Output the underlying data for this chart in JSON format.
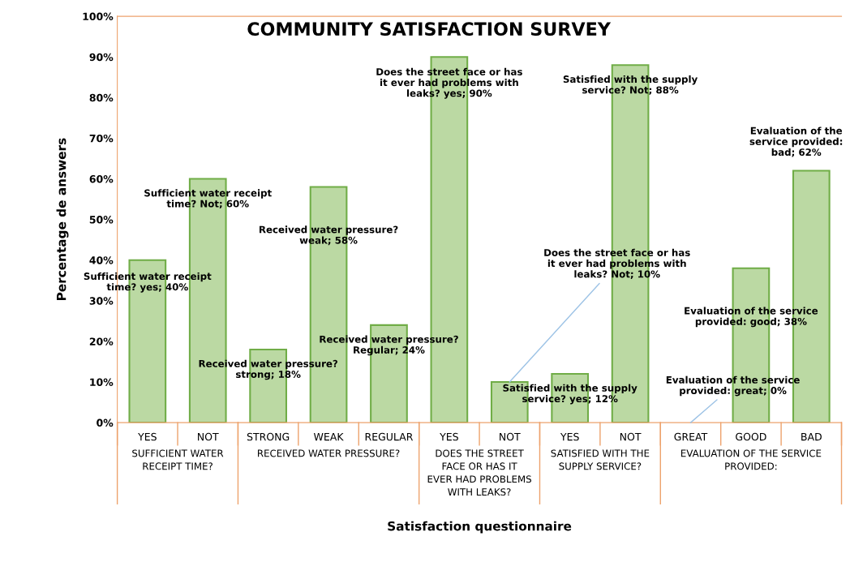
{
  "chart_data": {
    "type": "bar",
    "title": "COMMUNITY SATISFACTION SURVEY",
    "ylabel": "Percentage de answers",
    "categories": [
      "YES",
      "NOT",
      "STRONG",
      "WEAK",
      "REGULAR",
      "YES",
      "NOT",
      "YES",
      "NOT",
      "GREAT",
      "GOOD",
      "BAD"
    ],
    "values": [
      40,
      60,
      18,
      58,
      24,
      90,
      10,
      12,
      88,
      0,
      38,
      62
    ],
    "color": "#bbd9a3",
    "value_labels": [
      "Sufficient water receipt time? yes; 40%",
      "Sufficient water receipt time? Not; 60%",
      "Received water pressure? strong; 18%",
      "Received water pressure? weak; 58%",
      "Received water pressure? Regular; 24%",
      "Does the street face or has it ever had problems with leaks? yes; 90%",
      "Does the street face or has it ever had problems with leaks? Not; 10%",
      "Satisfied with the supply service? yes; 12%",
      "Satisfied with the supply service? Not; 88%",
      "Evaluation of the service provided: great; 0%",
      "Evaluation of the service provided: good; 38%",
      "Evaluation of the service provided: bad; 62%"
    ],
    "annotations": [
      "SUFFICIENT WATER RECEIPT TIME?",
      "RECEIVED WATER PRESSURE?",
      "DOES THE STREET FACE OR HAS IT EVER HAD PROBLEMS WITH LEAKS?",
      "SATISFIED WITH THE SUPPLY SERVICE?",
      "EVALUATION OF THE SERVICE PROVIDED:",
      "Satisfaction questionnaire"
    ],
    "ylim": [
      0,
      100
    ],
    "yticks": [
      {
        "value": 0,
        "label": "0%"
      },
      {
        "value": 10,
        "label": "10%"
      },
      {
        "value": 20,
        "label": "20%"
      },
      {
        "value": 30,
        "label": "30%"
      },
      {
        "value": 40,
        "label": "40%"
      },
      {
        "value": 50,
        "label": "50%"
      },
      {
        "value": 60,
        "label": "60%"
      },
      {
        "value": 70,
        "label": "70%"
      },
      {
        "value": 80,
        "label": "80%"
      },
      {
        "value": 90,
        "label": "90%"
      },
      {
        "value": 100,
        "label": "100%"
      }
    ]
  }
}
